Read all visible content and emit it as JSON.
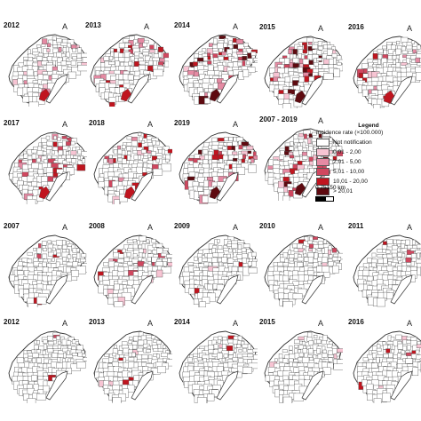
{
  "top_panels": [
    {
      "year": "2012",
      "level": "low"
    },
    {
      "year": "2013",
      "level": "mid"
    },
    {
      "year": "2014",
      "level": "high"
    },
    {
      "year": "2015",
      "level": "high"
    },
    {
      "year": "2016",
      "level": "mid"
    },
    {
      "year": "2017",
      "level": "mid"
    },
    {
      "year": "2018",
      "level": "mid"
    },
    {
      "year": "2019",
      "level": "high"
    },
    {
      "year": "2007 - 2019",
      "level": "high"
    }
  ],
  "bottom_panels": [
    {
      "year": "2007"
    },
    {
      "year": "2008"
    },
    {
      "year": "2009"
    },
    {
      "year": "2010"
    },
    {
      "year": "2011"
    },
    {
      "year": "2012"
    },
    {
      "year": "2013"
    },
    {
      "year": "2014"
    },
    {
      "year": "2015"
    },
    {
      "year": "2016"
    }
  ],
  "north_symbol": "A",
  "legend": {
    "title": "Legend",
    "subtitle": "Incidence rate (×100.000)",
    "items": [
      {
        "label": "Not notification",
        "color": "#ffffff"
      },
      {
        "label": "0,01 - 2,00",
        "color": "#f7c4d3"
      },
      {
        "label": "2,01 - 5,00",
        "color": "#e58aa3"
      },
      {
        "label": "5,01 - 10,00",
        "color": "#d0475f"
      },
      {
        "label": "10,01 - 20,00",
        "color": "#c0151f"
      },
      {
        "label": "> 20,01",
        "color": "#5e0a10"
      }
    ]
  },
  "scale": {
    "label": "0  75150 km"
  },
  "colors": {
    "border": "#333333",
    "background": "#ffffff"
  }
}
